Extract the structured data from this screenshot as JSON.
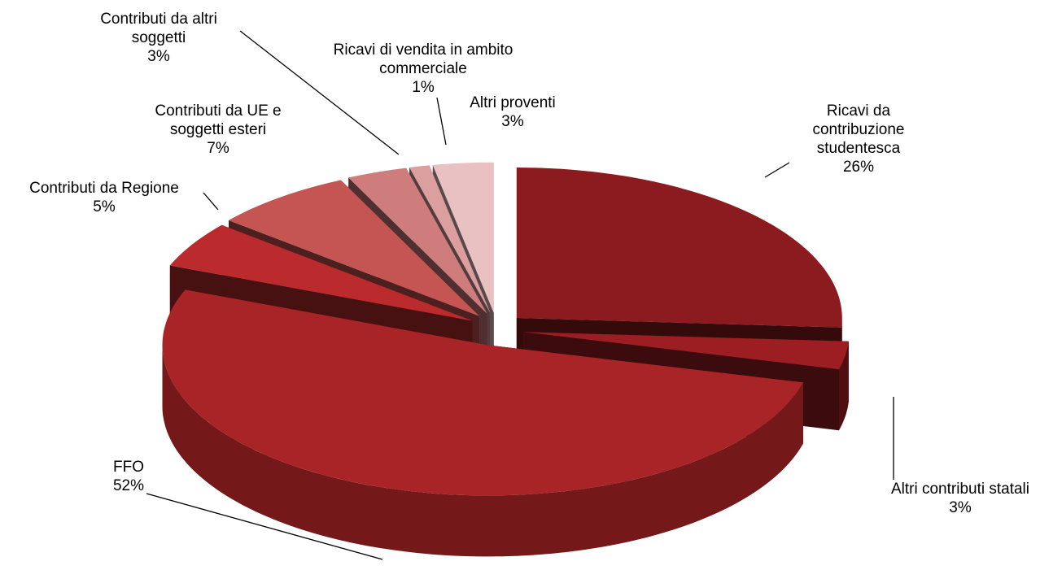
{
  "chart_data": {
    "type": "pie",
    "categories": [
      "Ricavi da contribuzione studentesca",
      "Altri contributi statali",
      "FFO",
      "Contributi da Regione",
      "Contributi da UE e soggetti esteri",
      "Contributi da altri soggetti",
      "Ricavi di vendita in ambito commerciale",
      "Altri proventi"
    ],
    "values": [
      26,
      3,
      52,
      5,
      7,
      3,
      1,
      3
    ],
    "value_labels": [
      "26%",
      "3%",
      "52%",
      "5%",
      "7%",
      "3%",
      "1%",
      "3%"
    ],
    "colors": [
      "#8c1b1f",
      "#9c1e23",
      "#a82427",
      "#bb2b2d",
      "#c55553",
      "#cf7c7c",
      "#dc9fa0",
      "#e9c1c2"
    ]
  }
}
